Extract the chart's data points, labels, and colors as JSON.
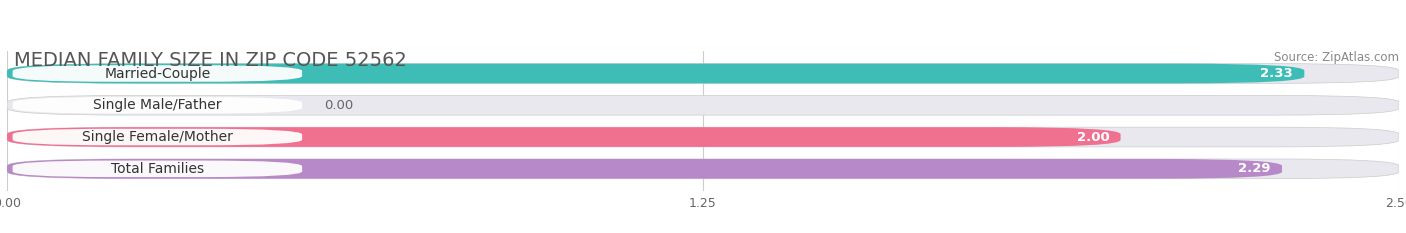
{
  "title": "MEDIAN FAMILY SIZE IN ZIP CODE 52562",
  "source": "Source: ZipAtlas.com",
  "categories": [
    "Married-Couple",
    "Single Male/Father",
    "Single Female/Mother",
    "Total Families"
  ],
  "values": [
    2.33,
    0.0,
    2.0,
    2.29
  ],
  "bar_colors": [
    "#3dbdb5",
    "#a8bde8",
    "#f07090",
    "#b889c8"
  ],
  "bar_bg_color": "#e8e8ee",
  "xlim": [
    0,
    2.5
  ],
  "xticks": [
    0.0,
    1.25,
    2.5
  ],
  "xtick_labels": [
    "0.00",
    "1.25",
    "2.50"
  ],
  "background_color": "#ffffff",
  "title_fontsize": 14,
  "label_fontsize": 10,
  "value_fontsize": 9.5,
  "bar_height": 0.62,
  "bar_gap": 0.38
}
